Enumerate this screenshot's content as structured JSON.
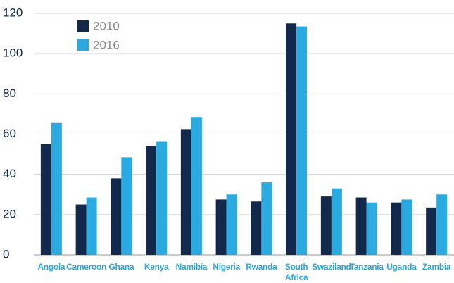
{
  "chart_data": {
    "type": "bar",
    "categories": [
      "Angola",
      "Cameroon",
      "Ghana",
      "Kenya",
      "Namibia",
      "Nigeria",
      "Rwanda",
      "South Africa",
      "Swaziland",
      "Tanzania",
      "Uganda",
      "Zambia"
    ],
    "series": [
      {
        "name": "2010",
        "color": "#13294b",
        "values": [
          55,
          25,
          38,
          54,
          62.5,
          27.5,
          26.5,
          115,
          29,
          28.5,
          26,
          23.5
        ]
      },
      {
        "name": "2016",
        "color": "#29abe2",
        "values": [
          65.5,
          28.5,
          48.5,
          56.5,
          68.5,
          30,
          36,
          113.5,
          33,
          26,
          27.5,
          30
        ]
      }
    ],
    "ylim": [
      0,
      120
    ],
    "yticks": [
      0,
      20,
      40,
      60,
      80,
      100,
      120
    ],
    "grid": true,
    "legend": "upper left"
  }
}
